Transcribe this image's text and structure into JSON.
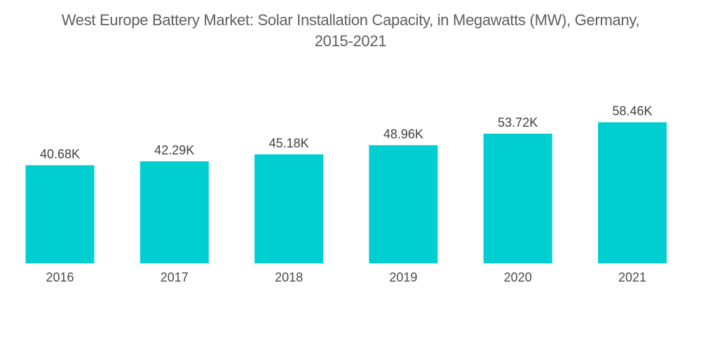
{
  "chart_data": {
    "type": "bar",
    "title": "West Europe Battery Market: Solar Installation Capacity, in Megawatts (MW), Germany, 2015-2021",
    "title_lines": [
      "West Europe Battery Market: Solar Installation Capacity, in Megawatts (MW), Germany,",
      "2015-2021"
    ],
    "xlabel": "",
    "ylabel": "",
    "categories": [
      "2016",
      "2017",
      "2018",
      "2019",
      "2020",
      "2021"
    ],
    "values": [
      40.68,
      42.29,
      45.18,
      48.96,
      53.72,
      58.46
    ],
    "value_labels": [
      "40.68K",
      "42.29K",
      "45.18K",
      "48.96K",
      "53.72K",
      "58.46K"
    ],
    "units": "thousand MW",
    "ylim": [
      0,
      68
    ],
    "grid": false,
    "legend": "none",
    "bar_color": "#00ced1"
  }
}
